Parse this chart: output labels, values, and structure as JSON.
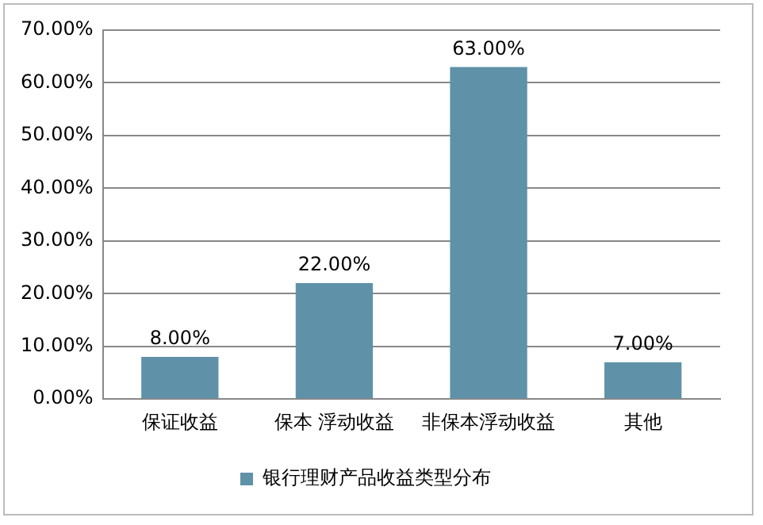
{
  "chart_data": {
    "type": "bar",
    "categories": [
      "保证收益",
      "保本 浮动收益",
      "非保本浮动收益",
      "其他"
    ],
    "series": [
      {
        "name": "银行理财产品收益类型分布",
        "color": "#5f92a8",
        "values": [
          8,
          22,
          63,
          7
        ],
        "value_labels": [
          "8.00%",
          "22.00%",
          "63.00%",
          "7.00%"
        ]
      }
    ],
    "ylim": [
      0,
      70
    ],
    "yticks": [
      {
        "value": 0,
        "label": "0.00%"
      },
      {
        "value": 10,
        "label": "10.00%"
      },
      {
        "value": 20,
        "label": "20.00%"
      },
      {
        "value": 30,
        "label": "30.00%"
      },
      {
        "value": 40,
        "label": "40.00%"
      },
      {
        "value": 50,
        "label": "50.00%"
      },
      {
        "value": 60,
        "label": "60.00%"
      },
      {
        "value": 70,
        "label": "70.00%"
      }
    ],
    "grid": "y",
    "legend": "bottom"
  }
}
